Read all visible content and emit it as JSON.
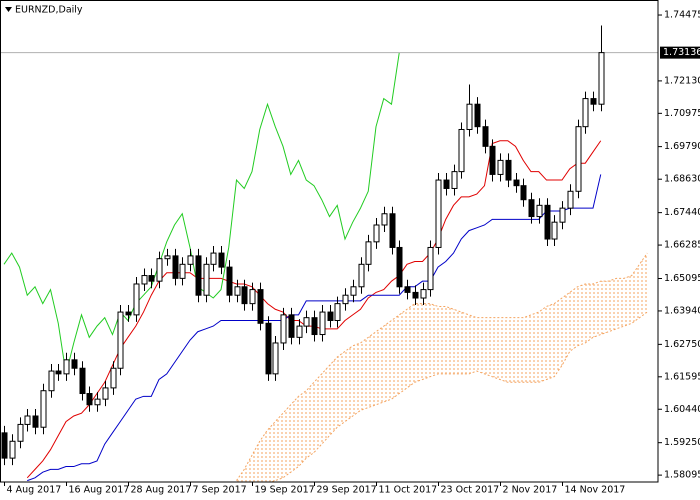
{
  "chart_data": {
    "type": "candlestick",
    "title": "EURNZD,Daily",
    "current_price": 1.73136,
    "categories": [
      "4 Aug 2017",
      null,
      null,
      null,
      null,
      null,
      null,
      null,
      "16 Aug 2017",
      null,
      null,
      null,
      null,
      null,
      null,
      null,
      "28 Aug 2017",
      null,
      null,
      null,
      null,
      null,
      null,
      null,
      "7 Sep 2017",
      null,
      null,
      null,
      null,
      null,
      null,
      null,
      "19 Sep 2017",
      null,
      null,
      null,
      null,
      null,
      null,
      null,
      "29 Sep 2017",
      null,
      null,
      null,
      null,
      null,
      null,
      null,
      "11 Oct 2017",
      null,
      null,
      null,
      null,
      null,
      null,
      null,
      "23 Oct 2017",
      null,
      null,
      null,
      null,
      null,
      null,
      null,
      "2 Nov 2017",
      null,
      null,
      null,
      null,
      null,
      null,
      null,
      "14 Nov 2017",
      null,
      null,
      null,
      null,
      null,
      null,
      null,
      null,
      null,
      null,
      null
    ],
    "open": [
      1.596,
      1.587,
      1.593,
      1.599,
      1.602,
      1.598,
      1.611,
      1.618,
      1.617,
      1.622,
      1.619,
      1.61,
      1.606,
      1.608,
      1.612,
      1.619,
      1.639,
      1.638,
      1.649,
      1.652,
      1.65,
      1.658,
      1.659,
      1.651,
      1.656,
      1.659,
      1.645,
      1.656,
      1.66,
      1.655,
      1.645,
      1.648,
      1.642,
      1.647,
      1.635,
      1.617,
      1.628,
      1.638,
      1.63,
      1.634,
      1.637,
      1.631,
      1.639,
      1.636,
      1.642,
      1.645,
      1.648,
      1.656,
      1.664,
      1.67,
      1.674,
      1.662,
      1.648,
      1.646,
      1.644,
      1.647,
      1.662,
      1.686,
      1.683,
      1.689,
      1.704,
      1.713,
      1.705,
      1.698,
      1.688,
      1.693,
      1.686,
      1.684,
      1.679,
      1.673,
      1.677,
      1.665,
      1.671,
      1.676,
      1.682,
      1.705,
      1.715,
      1.713,
      null,
      null,
      null,
      null,
      null,
      null
    ],
    "high": [
      1.5985,
      1.5955,
      1.6015,
      1.6045,
      1.6045,
      1.6135,
      1.6205,
      1.6205,
      1.6245,
      1.6245,
      1.6215,
      1.6125,
      1.6105,
      1.6145,
      1.6215,
      1.6415,
      1.6415,
      1.6515,
      1.6545,
      1.6545,
      1.6605,
      1.6615,
      1.6615,
      1.6585,
      1.6615,
      1.6615,
      1.6585,
      1.6625,
      1.6625,
      1.6575,
      1.6505,
      1.6505,
      1.6495,
      1.6495,
      1.6375,
      1.6305,
      1.6405,
      1.6405,
      1.6365,
      1.6395,
      1.6395,
      1.6415,
      1.6415,
      1.6445,
      1.6475,
      1.6505,
      1.6585,
      1.6665,
      1.6725,
      1.6765,
      1.6765,
      1.6645,
      1.6505,
      1.6485,
      1.6495,
      1.6645,
      1.6885,
      1.6885,
      1.6915,
      1.7065,
      1.72,
      1.7155,
      1.7075,
      1.7005,
      1.6955,
      1.6955,
      1.6885,
      1.6865,
      1.6815,
      1.6795,
      1.6795,
      1.6735,
      1.6785,
      1.6845,
      1.7075,
      1.7175,
      1.7175,
      1.741,
      null,
      null,
      null,
      null,
      null,
      null
    ],
    "low": [
      1.5845,
      1.5845,
      1.5905,
      1.5965,
      1.5955,
      1.5955,
      1.6085,
      1.6145,
      1.6145,
      1.6165,
      1.6075,
      1.6035,
      1.6035,
      1.6055,
      1.6095,
      1.6165,
      1.6355,
      1.6355,
      1.6465,
      1.6475,
      1.6475,
      1.6555,
      1.6485,
      1.6485,
      1.6535,
      1.6425,
      1.6425,
      1.6535,
      1.6525,
      1.6425,
      1.6425,
      1.6395,
      1.6395,
      1.6325,
      1.6145,
      1.6145,
      1.6255,
      1.6275,
      1.6275,
      1.6315,
      1.6285,
      1.6285,
      1.6335,
      1.6335,
      1.6395,
      1.6425,
      1.6455,
      1.6535,
      1.6615,
      1.6675,
      1.6595,
      1.6455,
      1.6435,
      1.6415,
      1.6415,
      1.6445,
      1.6595,
      1.6805,
      1.6805,
      1.6865,
      1.7015,
      1.7025,
      1.6955,
      1.6855,
      1.6855,
      1.6835,
      1.6815,
      1.6765,
      1.6705,
      1.6705,
      1.6625,
      1.6625,
      1.6685,
      1.6735,
      1.6795,
      1.7025,
      1.7105,
      1.7105,
      null,
      null,
      null,
      null,
      null,
      null
    ],
    "close": [
      1.587,
      1.593,
      1.599,
      1.602,
      1.598,
      1.611,
      1.618,
      1.617,
      1.622,
      1.619,
      1.61,
      1.606,
      1.608,
      1.612,
      1.619,
      1.639,
      1.638,
      1.649,
      1.652,
      1.65,
      1.658,
      1.659,
      1.651,
      1.656,
      1.659,
      1.645,
      1.656,
      1.66,
      1.655,
      1.645,
      1.648,
      1.642,
      1.647,
      1.635,
      1.617,
      1.628,
      1.638,
      1.63,
      1.634,
      1.637,
      1.631,
      1.639,
      1.636,
      1.642,
      1.645,
      1.648,
      1.656,
      1.664,
      1.67,
      1.674,
      1.662,
      1.648,
      1.646,
      1.644,
      1.647,
      1.662,
      1.686,
      1.683,
      1.689,
      1.704,
      1.713,
      1.705,
      1.698,
      1.688,
      1.693,
      1.686,
      1.684,
      1.679,
      1.673,
      1.677,
      1.665,
      1.671,
      1.676,
      1.682,
      1.705,
      1.715,
      1.713,
      1.73136,
      null,
      null,
      null,
      null,
      null,
      null
    ],
    "series": [
      {
        "color": "#e00000",
        "values": [
          null,
          null,
          null,
          1.58,
          1.583,
          1.586,
          1.59,
          1.595,
          1.6,
          1.602,
          1.603,
          1.606,
          1.61,
          1.614,
          1.62,
          1.626,
          1.63,
          1.634,
          1.639,
          1.645,
          1.65,
          1.653,
          1.653,
          1.653,
          1.653,
          1.651,
          1.651,
          1.651,
          1.651,
          1.65,
          1.649,
          1.649,
          1.648,
          1.645,
          1.642,
          1.64,
          1.639,
          1.636,
          1.636,
          1.634,
          1.634,
          1.633,
          1.633,
          1.633,
          1.636,
          1.638,
          1.64,
          1.644,
          1.646,
          1.647,
          1.65,
          1.652,
          1.656,
          1.657,
          1.657,
          1.66,
          1.665,
          1.672,
          1.677,
          1.68,
          1.68,
          1.681,
          1.684,
          1.699,
          1.7,
          1.7,
          1.698,
          1.693,
          1.689,
          1.689,
          1.686,
          1.686,
          1.686,
          1.69,
          1.692,
          1.692,
          1.696,
          1.7,
          null,
          null,
          null,
          null,
          null,
          null
        ]
      },
      {
        "color": "#0000c8",
        "values": [
          null,
          null,
          null,
          1.579,
          1.58,
          1.582,
          1.583,
          1.583,
          1.584,
          1.584,
          1.585,
          1.585,
          1.586,
          1.592,
          1.596,
          1.6,
          1.604,
          1.608,
          1.609,
          1.609,
          1.615,
          1.617,
          1.621,
          1.625,
          1.629,
          1.632,
          1.633,
          1.634,
          1.636,
          1.636,
          1.636,
          1.636,
          1.636,
          1.636,
          1.636,
          1.636,
          1.636,
          1.638,
          1.638,
          1.643,
          1.643,
          1.643,
          1.643,
          1.643,
          1.643,
          1.643,
          1.643,
          1.645,
          1.645,
          1.645,
          1.645,
          1.645,
          1.648,
          1.648,
          1.65,
          1.65,
          1.655,
          1.657,
          1.66,
          1.665,
          1.668,
          1.669,
          1.67,
          1.672,
          1.672,
          1.672,
          1.672,
          1.672,
          1.672,
          1.672,
          1.675,
          1.675,
          1.675,
          1.676,
          1.676,
          1.676,
          1.676,
          1.688,
          null,
          null,
          null,
          null,
          null,
          null
        ]
      },
      {
        "color": "#22cc22",
        "values": [
          1.656,
          1.66,
          1.655,
          1.645,
          1.648,
          1.642,
          1.647,
          1.635,
          1.617,
          1.628,
          1.638,
          1.63,
          1.634,
          1.637,
          1.631,
          1.639,
          1.636,
          1.642,
          1.645,
          1.648,
          1.656,
          1.664,
          1.67,
          1.674,
          1.662,
          1.648,
          1.646,
          1.644,
          1.647,
          1.662,
          1.686,
          1.683,
          1.689,
          1.704,
          1.713,
          1.705,
          1.698,
          1.688,
          1.693,
          1.686,
          1.684,
          1.679,
          1.673,
          1.677,
          1.665,
          1.671,
          1.676,
          1.682,
          1.705,
          1.715,
          1.713,
          1.73136,
          null,
          null,
          null,
          null,
          null,
          null,
          null,
          null,
          null,
          null,
          null,
          null,
          null,
          null,
          null,
          null,
          null,
          null,
          null,
          null,
          null,
          null,
          null,
          null,
          null,
          null,
          null,
          null,
          null,
          null,
          null,
          null
        ]
      }
    ],
    "cloud": {
      "color": "#f4a460",
      "span_a": [
        null,
        null,
        null,
        null,
        null,
        null,
        null,
        null,
        null,
        null,
        null,
        null,
        null,
        null,
        null,
        null,
        null,
        null,
        null,
        null,
        null,
        null,
        null,
        null,
        null,
        null,
        null,
        null,
        null,
        null,
        1.579,
        1.583,
        1.588,
        1.593,
        1.597,
        1.6,
        1.603,
        1.606,
        1.609,
        1.611,
        1.614,
        1.617,
        1.62,
        1.623,
        1.625,
        1.627,
        1.628,
        1.63,
        1.632,
        1.634,
        1.636,
        1.638,
        1.64,
        1.642,
        1.642,
        1.642,
        1.641,
        1.641,
        1.64,
        1.639,
        1.638,
        1.637,
        1.637,
        1.637,
        1.637,
        1.637,
        1.637,
        1.637,
        1.638,
        1.639,
        1.641,
        1.642,
        1.644,
        1.646,
        1.648,
        1.649,
        1.649,
        1.65,
        1.65,
        1.651,
        1.651,
        1.652,
        1.656,
        1.66
      ],
      "span_b": [
        null,
        null,
        null,
        null,
        null,
        null,
        null,
        null,
        null,
        null,
        null,
        null,
        null,
        null,
        null,
        null,
        null,
        null,
        null,
        null,
        null,
        null,
        null,
        null,
        null,
        null,
        null,
        null,
        null,
        null,
        1.578,
        1.578,
        1.578,
        1.578,
        1.578,
        1.579,
        1.58,
        1.582,
        1.584,
        1.587,
        1.589,
        1.592,
        1.595,
        1.598,
        1.6,
        1.602,
        1.604,
        1.605,
        1.606,
        1.607,
        1.608,
        1.61,
        1.612,
        1.614,
        1.615,
        1.616,
        1.617,
        1.617,
        1.617,
        1.617,
        1.617,
        1.618,
        1.617,
        1.616,
        1.615,
        1.614,
        1.614,
        1.614,
        1.614,
        1.614,
        1.615,
        1.616,
        1.62,
        1.625,
        1.627,
        1.628,
        1.63,
        1.631,
        1.632,
        1.633,
        1.634,
        1.635,
        1.637,
        1.639
      ]
    },
    "ylim": [
      1.5785,
      1.7501
    ],
    "yticks": [
      1.74475,
      {
        "value": 1.7213,
        "label": "1.72130"
      },
      1.70975,
      {
        "value": 1.6979,
        "label": "1.69790"
      },
      {
        "value": 1.6863,
        "label": "1.68630"
      },
      {
        "value": 1.6744,
        "label": "1.67440"
      },
      1.66285,
      1.65095,
      {
        "value": 1.6394,
        "label": "1.63940"
      },
      {
        "value": 1.6275,
        "label": "1.62750"
      },
      1.61595,
      {
        "value": 1.6044,
        "label": "1.60440"
      },
      {
        "value": 1.5925,
        "label": "1.59250"
      },
      1.58095
    ],
    "grid": false
  }
}
